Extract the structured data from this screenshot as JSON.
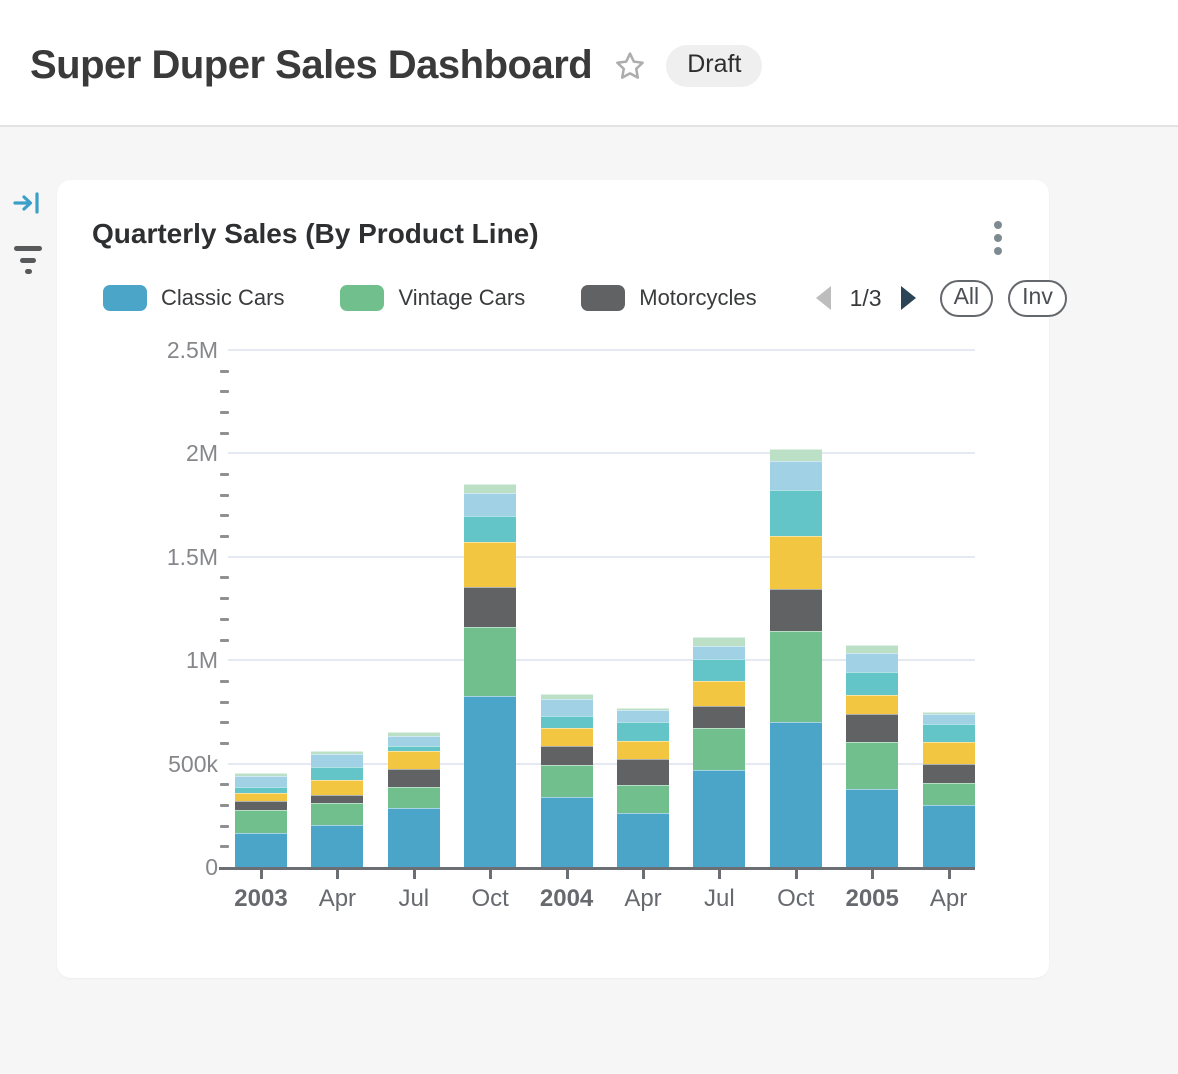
{
  "header": {
    "title": "Super Duper Sales Dashboard",
    "badge": "Draft"
  },
  "icons": {
    "favorite": "star-outline",
    "sidebar_toggle": "arrow-to-bar-right",
    "filter": "filter-lines",
    "card_menu": "kebab-vertical-dots",
    "legend_prev": "triangle-left",
    "legend_next": "triangle-right"
  },
  "card": {
    "title": "Quarterly Sales (By Product Line)",
    "pagination": {
      "page_label": "1/3",
      "prev_enabled": false,
      "next_enabled": true
    },
    "actions": [
      {
        "label": "All"
      },
      {
        "label": "Inv"
      }
    ]
  },
  "colors": {
    "prev_arrow": "#BDBDBD",
    "next_arrow": "#2B4557",
    "sidebar_toggle_accent": "#3C9FC9",
    "grid": "#E4E9F2",
    "axis": "#6B6E72"
  },
  "chart_data": {
    "type": "bar",
    "stacked": true,
    "title": "Quarterly Sales (By Product Line)",
    "xlabel": "",
    "ylabel": "",
    "ylim": [
      0,
      2500000
    ],
    "y_ticks": [
      "0",
      "500k",
      "1M",
      "1.5M",
      "2M",
      "2.5M"
    ],
    "minor_ticks_per_major": 4,
    "grid": "horizontal major gridlines on",
    "legend_position": "top, paginated page 1 of 3 (3 of 7 series labeled)",
    "categories": [
      {
        "label": "2003",
        "bold": true
      },
      {
        "label": "Apr",
        "bold": false
      },
      {
        "label": "Jul",
        "bold": false
      },
      {
        "label": "Oct",
        "bold": false
      },
      {
        "label": "2004",
        "bold": true
      },
      {
        "label": "Apr",
        "bold": false
      },
      {
        "label": "Jul",
        "bold": false
      },
      {
        "label": "Oct",
        "bold": false
      },
      {
        "label": "2005",
        "bold": true
      },
      {
        "label": "Apr",
        "bold": false
      }
    ],
    "series": [
      {
        "name": "Classic Cars",
        "color": "#4AA5C8",
        "in_legend": true,
        "values": [
          165000,
          205000,
          285000,
          825000,
          340000,
          262000,
          470000,
          700000,
          378000,
          298000
        ]
      },
      {
        "name": "Vintage Cars",
        "color": "#71BF8D",
        "in_legend": true,
        "values": [
          110000,
          105000,
          100000,
          335000,
          153000,
          135000,
          200000,
          443000,
          227000,
          108000
        ]
      },
      {
        "name": "Motorcycles",
        "color": "#616263",
        "in_legend": true,
        "values": [
          42000,
          40000,
          90000,
          195000,
          92000,
          126000,
          110000,
          200000,
          137000,
          93000
        ]
      },
      {
        "name": "unlabeled-yellow",
        "color": "#F3C642",
        "in_legend": false,
        "values": [
          40000,
          70000,
          85000,
          215000,
          85000,
          88000,
          120000,
          260000,
          88000,
          105000
        ]
      },
      {
        "name": "unlabeled-teal",
        "color": "#63C5C8",
        "in_legend": false,
        "values": [
          29000,
          64000,
          24000,
          128000,
          61000,
          89000,
          108000,
          222000,
          113000,
          88000
        ]
      },
      {
        "name": "unlabeled-light-blue",
        "color": "#A0D1E4",
        "in_legend": false,
        "values": [
          52000,
          64000,
          48000,
          112000,
          84000,
          59000,
          61000,
          137000,
          92000,
          48000
        ]
      },
      {
        "name": "unlabeled-light-green",
        "color": "#BCE0C6",
        "in_legend": false,
        "values": [
          16000,
          11000,
          19000,
          40000,
          21000,
          8000,
          45000,
          61000,
          40000,
          10000
        ]
      }
    ]
  }
}
